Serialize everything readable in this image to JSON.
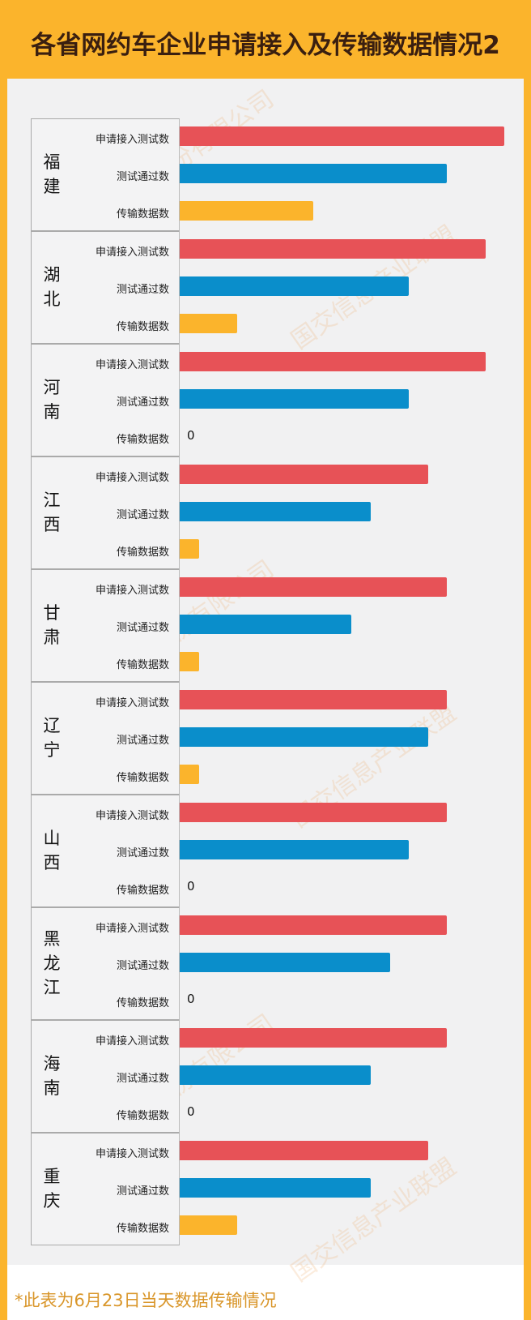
{
  "title": "各省网约车企业申请接入及传输数据情况2",
  "footnote": "*此表为6月23日当天数据传输情况",
  "watermarks": [
    "国交信息股份有限公司",
    "国交信息产业联盟"
  ],
  "chart_data": {
    "type": "bar",
    "orientation": "horizontal",
    "title": "各省网约车企业申请接入及传输数据情况2",
    "categories": [
      "福建",
      "湖北",
      "河南",
      "江西",
      "甘肃",
      "辽宁",
      "山西",
      "黑龙江",
      "海南",
      "重庆"
    ],
    "series": [
      {
        "name": "申请接入测试数",
        "color": "#e75257",
        "values": [
          17,
          16,
          16,
          13,
          14,
          14,
          14,
          14,
          14,
          13
        ]
      },
      {
        "name": "测试通过数",
        "color": "#0a8ecb",
        "values": [
          14,
          12,
          12,
          10,
          9,
          13,
          12,
          11,
          10,
          10
        ]
      },
      {
        "name": "传输数据数",
        "color": "#fbb42c",
        "values": [
          7,
          3,
          0,
          1,
          1,
          1,
          0,
          0,
          0,
          3
        ]
      }
    ],
    "zero_label": "0",
    "legend": "none",
    "grid": false
  }
}
